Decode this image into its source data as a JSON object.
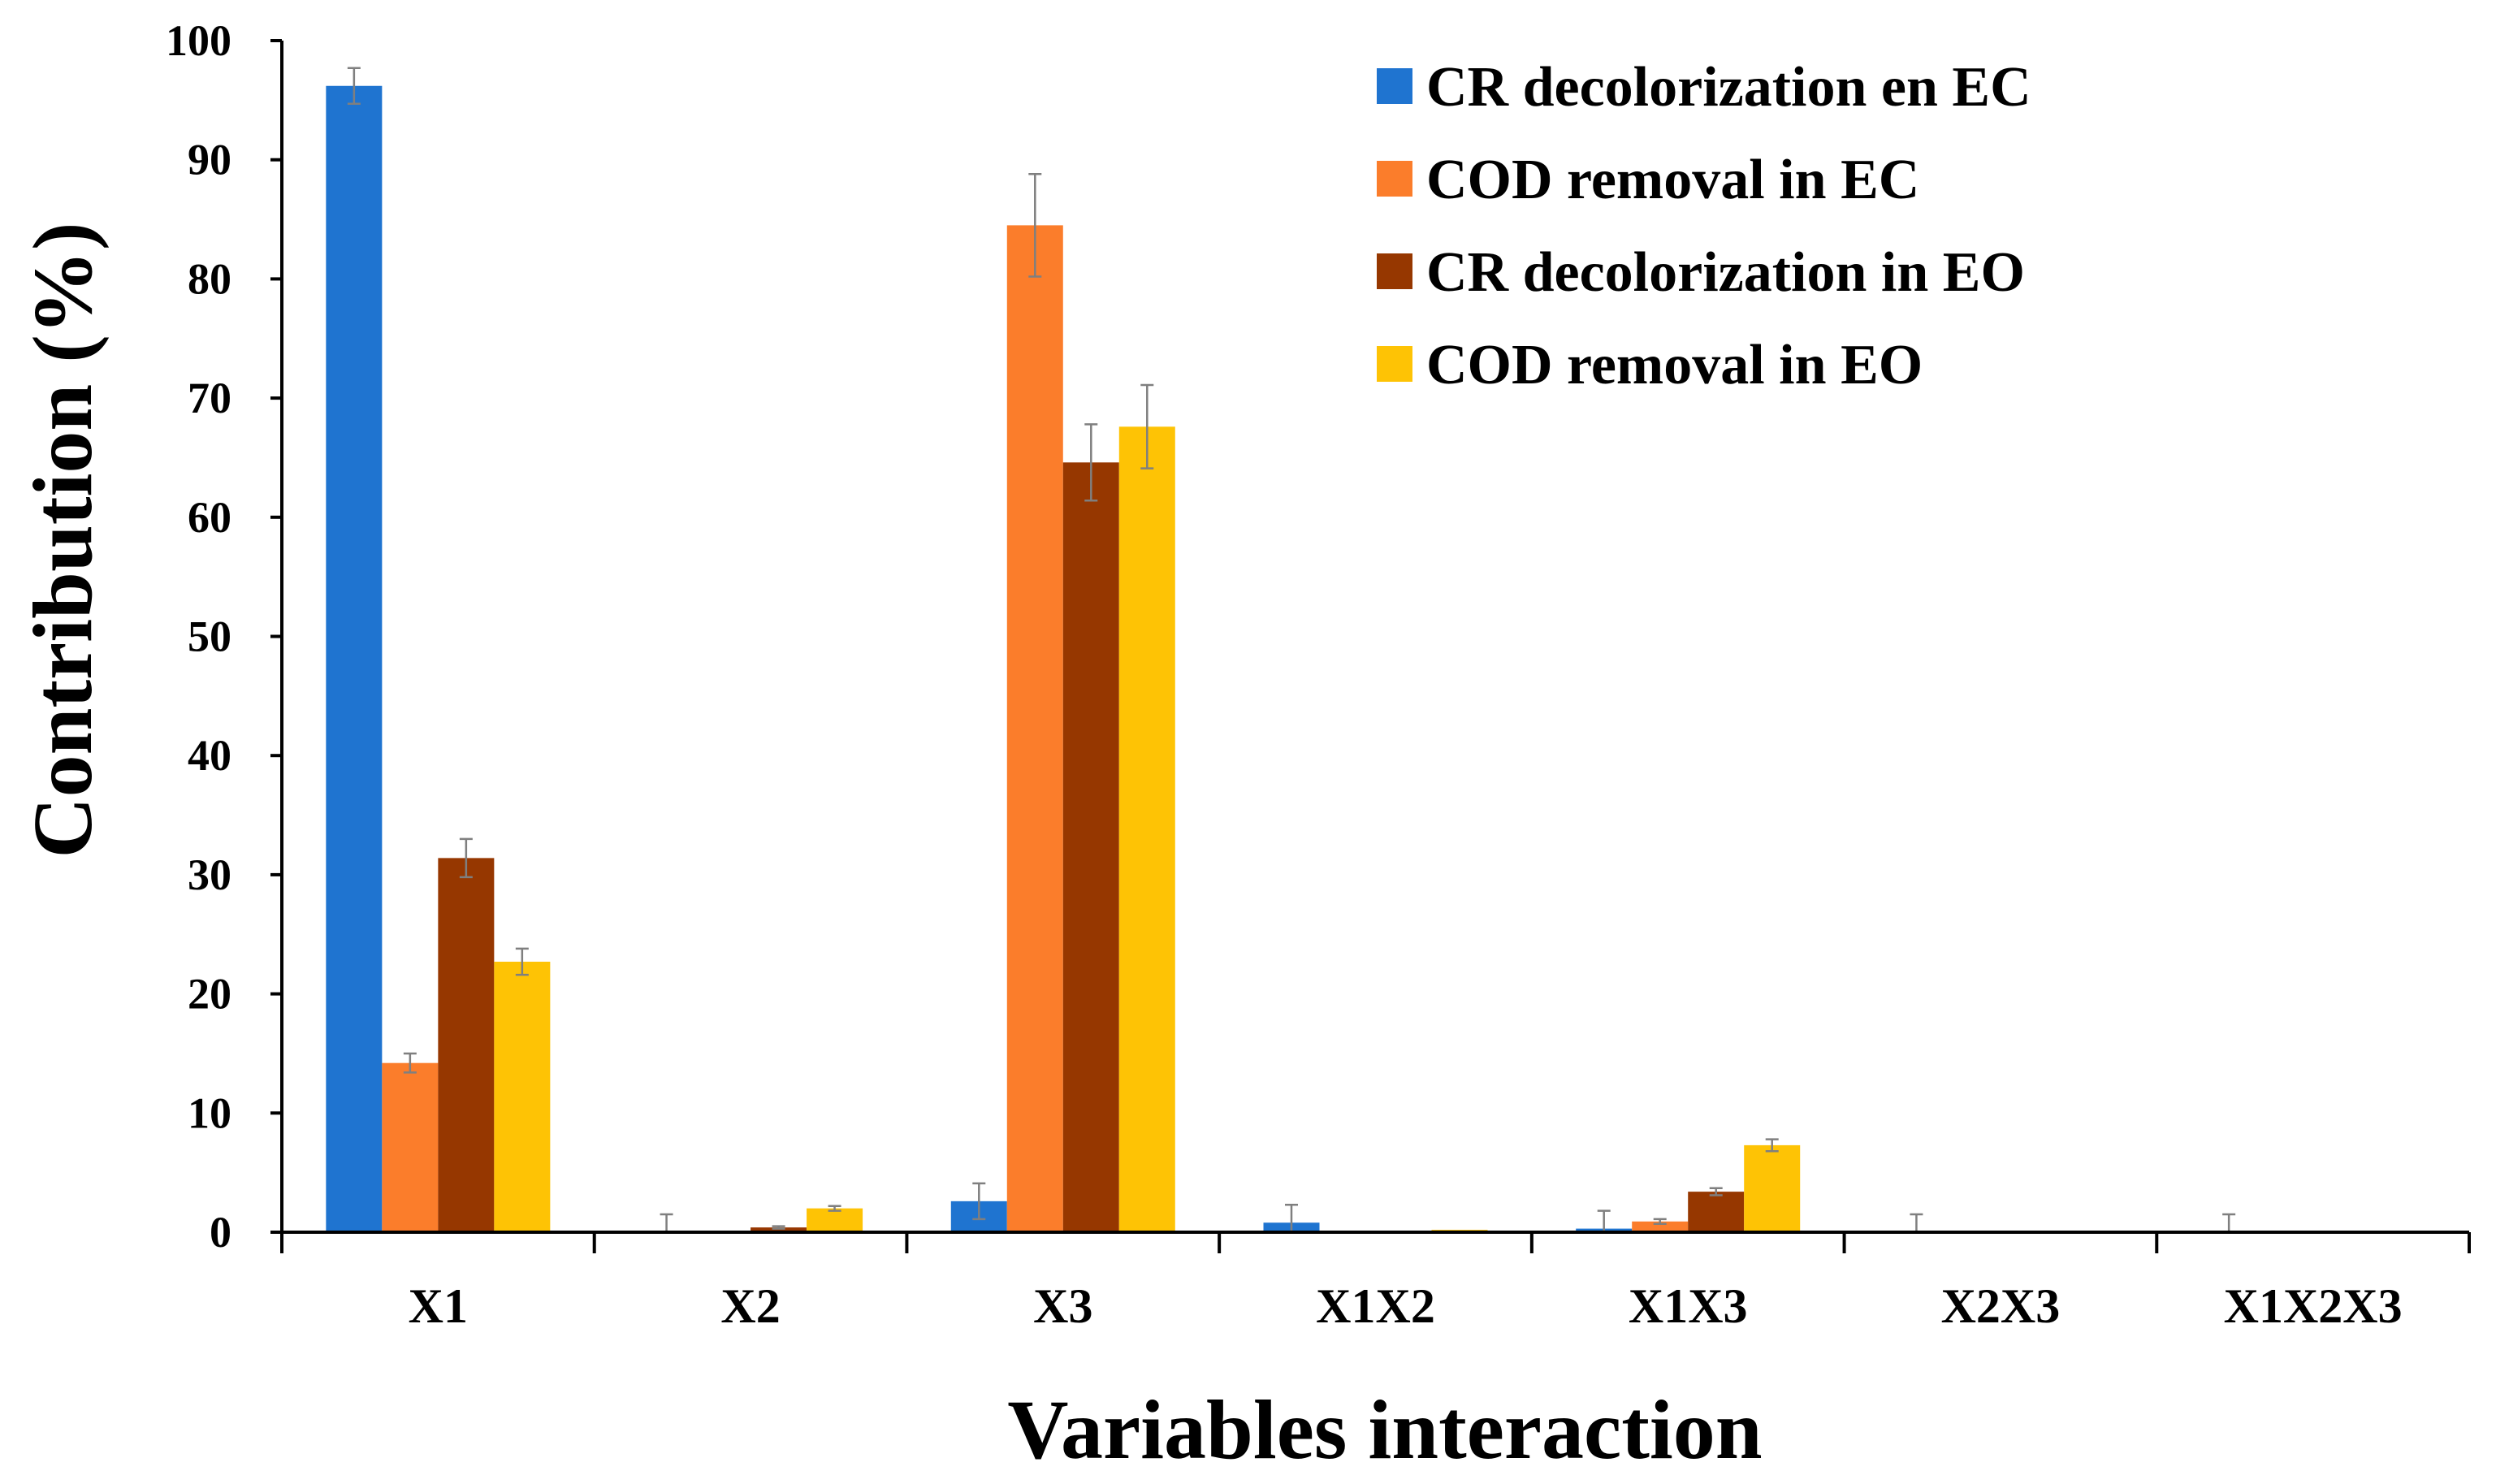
{
  "chart_data": {
    "type": "bar",
    "title": "",
    "xlabel": "Variables interaction",
    "ylabel": "Contribution (%)",
    "ylim": [
      0,
      100
    ],
    "yticks": [
      0,
      10,
      20,
      30,
      40,
      50,
      60,
      70,
      80,
      90,
      100
    ],
    "grid": false,
    "legend_position": "top-right",
    "categories": [
      "X1",
      "X2",
      "X3",
      "X1X2",
      "X1X3",
      "X2X3",
      "X1X2X3"
    ],
    "series": [
      {
        "name": "CR decolorization en EC",
        "color": "#1F74D0",
        "values": [
          96.2,
          0.0,
          2.6,
          0.8,
          0.3,
          0.0,
          0.0
        ],
        "errors": [
          1.5,
          1.5,
          1.5,
          1.5,
          1.5,
          1.5,
          1.5
        ]
      },
      {
        "name": "COD removal in EC",
        "color": "#FB7D2B",
        "values": [
          14.2,
          0.1,
          84.5,
          0.0,
          0.9,
          0.0,
          0.0
        ],
        "errors": [
          0.8,
          0.0,
          4.3,
          0.0,
          0.2,
          0.0,
          0.0
        ]
      },
      {
        "name": "CR decolorization in EO",
        "color": "#963700",
        "values": [
          31.4,
          0.4,
          64.6,
          0.0,
          3.4,
          0.0,
          0.0
        ],
        "errors": [
          1.6,
          0.1,
          3.2,
          0.0,
          0.3,
          0.0,
          0.0
        ]
      },
      {
        "name": "COD removal in EO",
        "color": "#FEC305",
        "values": [
          22.7,
          2.0,
          67.6,
          0.2,
          7.3,
          0.0,
          0.0
        ],
        "errors": [
          1.1,
          0.2,
          3.5,
          0.0,
          0.5,
          0.0,
          0.0
        ]
      }
    ]
  }
}
